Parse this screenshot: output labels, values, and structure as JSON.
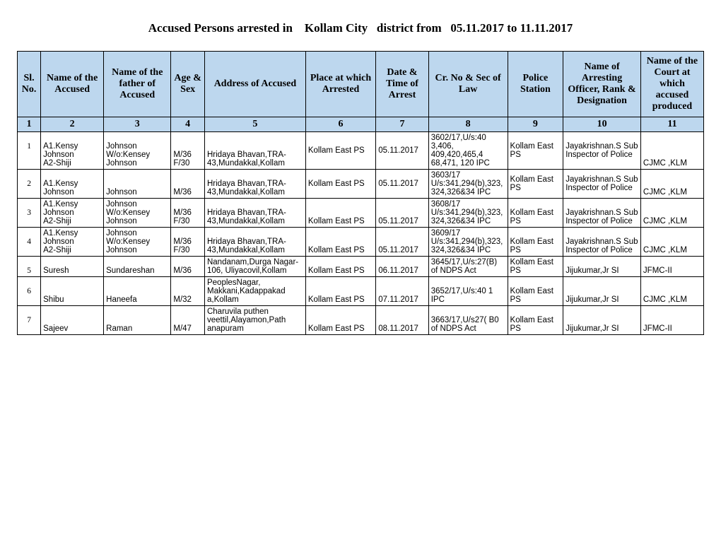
{
  "title": "Accused Persons arrested in    Kollam City   district from   05.11.2017 to 11.11.2017",
  "headers": {
    "h1": "Sl. No.",
    "h2": "Name of the Accused",
    "h3": "Name of the father of Accused",
    "h4": "Age & Sex",
    "h5": "Address of Accused",
    "h6": "Place at which Arrested",
    "h7": "Date & Time of Arrest",
    "h8": "Cr. No & Sec of Law",
    "h9": "Police Station",
    "h10": "Name of Arresting Officer, Rank & Designation",
    "h11": "Name of the Court at which accused produced"
  },
  "numrow": {
    "n1": "1",
    "n2": "2",
    "n3": "3",
    "n4": "4",
    "n5": "5",
    "n6": "6",
    "n7": "7",
    "n8": "8",
    "n9": "9",
    "n10": "10",
    "n11": "11"
  },
  "rows": [
    {
      "sl": "1",
      "accused": "A1.Kensy Johnson\nA2-Shiji",
      "father": "Johnson\nW/o:Kensey Johnson",
      "age": "M/36\nF/30",
      "address": "Hridaya Bhavan,TRA-43,Mundakkal,Kollam",
      "place": "Kollam East PS",
      "date": "05.11.2017",
      "cr": "3602/17,U/s:40 3,406, 409,420,465,4 68,471, 120 IPC",
      "ps": "Kollam East PS",
      "officer": "Jayakrishnan.S Sub Inspector of Police",
      "court": "CJMC ,KLM",
      "place_vmid": true,
      "date_vmid": true,
      "ps_vmid": true,
      "officer_vmid": true
    },
    {
      "sl": "2",
      "accused": "A1.Kensy Johnson",
      "father": "Johnson",
      "age": "M/36",
      "address": "Hridaya Bhavan,TRA-43,Mundakkal,Kollam",
      "place": "Kollam East PS",
      "date": "05.11.2017",
      "cr": "3603/17 U/s:341,294(b),323, 324,326&34 IPC",
      "ps": "Kollam East PS",
      "officer": "Jayakrishnan.S Sub Inspector of Police",
      "court": "CJMC ,KLM",
      "place_vmid": true,
      "date_vmid": true,
      "ps_vmid": true,
      "officer_vmid": true
    },
    {
      "sl": "3",
      "accused": "A1.Kensy Johnson\nA2-Shiji",
      "father": "Johnson\nW/o:Kensey Johnson",
      "age": "M/36\nF/30",
      "address": "Hridaya Bhavan,TRA-43,Mundakkal,Kollam",
      "place": "Kollam East PS",
      "date": "05.11.2017",
      "cr": "3608/17 U/s:341,294(b),323, 324,326&34 IPC",
      "ps": "Kollam East PS",
      "officer": "Jayakrishnan.S Sub Inspector of Police",
      "court": "CJMC ,KLM"
    },
    {
      "sl": "4",
      "accused": "A1.Kensy Johnson\nA2-Shiji",
      "father": "Johnson\nW/o:Kensey Johnson",
      "age": "M/36\nF/30",
      "address": "Hridaya Bhavan,TRA-43,Mundakkal,Kollam",
      "place": "Kollam East PS",
      "date": "05.11.2017",
      "cr": "3609/17 U/s:341,294(b),323, 324,326&34 IPC",
      "ps": "Kollam East PS",
      "officer": "Jayakrishnan.S Sub Inspector of Police",
      "court": "CJMC ,KLM"
    },
    {
      "sl": "5",
      "accused": "Suresh",
      "father": "Sundareshan",
      "age": "M/36",
      "address": "Nandanam,Durga Nagar-106, Uliyacovil,Kollam",
      "place": "Kollam East PS",
      "date": "06.11.2017",
      "cr": "3645/17,U/s:27(B) of NDPS Act",
      "ps": "Kollam East PS",
      "officer": "Jijukumar,Jr SI",
      "court": "JFMC-II"
    },
    {
      "sl": "6",
      "accused": "Shibu",
      "father": "Haneefa",
      "age": "M/32",
      "address": "PeoplesNagar, Makkani,Kadappakad a,Kollam",
      "place": "Kollam East PS",
      "date": "07.11.2017",
      "cr": "3652/17,U/s:40 1 IPC",
      "ps": "Kollam East PS",
      "officer": "Jijukumar,Jr SI",
      "court": "CJMC ,KLM"
    },
    {
      "sl": "7",
      "accused": "Sajeev",
      "father": "Raman",
      "age": "M/47",
      "address": "Charuvila puthen veettil,Alayamon,Path anapuram",
      "place": "Kollam East PS",
      "date": "08.11.2017",
      "cr": "3663/17,U/s27( B0 of NDPS Act",
      "ps": "Kollam East PS",
      "officer": "Jijukumar,Jr SI",
      "court": "JFMC-II"
    }
  ]
}
